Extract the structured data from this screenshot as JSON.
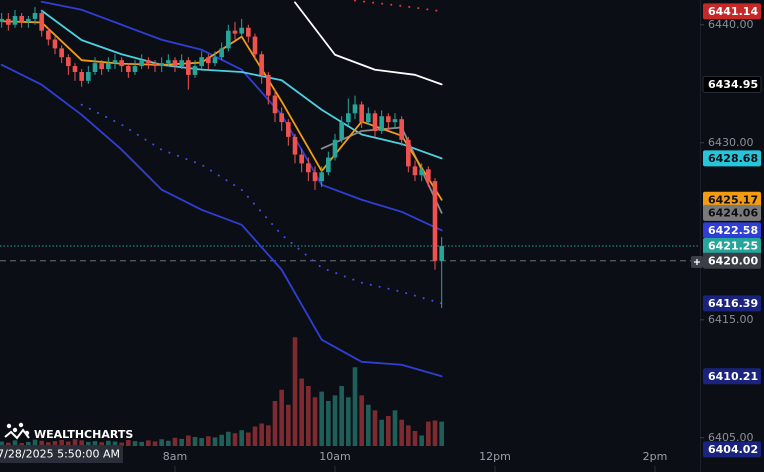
{
  "chart_data": {
    "type": "candlestick",
    "x": [
      350,
      355,
      360,
      365,
      370,
      375,
      380,
      385,
      390,
      395,
      400,
      405,
      410,
      415,
      420,
      425,
      430,
      435,
      440,
      445,
      450,
      455,
      460,
      465,
      470,
      475,
      480,
      485,
      490,
      495,
      500,
      505,
      510,
      515,
      520,
      525,
      530,
      535,
      540,
      545,
      550,
      555,
      560,
      565,
      570,
      575,
      580,
      585,
      590,
      595,
      600,
      605,
      610,
      615,
      620,
      625,
      630,
      635,
      640,
      645,
      650,
      655,
      660,
      665,
      670,
      675,
      680
    ],
    "open": [
      6440.25,
      6440.5,
      6440.0,
      6440.75,
      6440.25,
      6440.5,
      6441.0,
      6439.5,
      6438.75,
      6438.0,
      6437.25,
      6436.5,
      6436.0,
      6435.25,
      6436.0,
      6436.75,
      6436.25,
      6436.75,
      6437.0,
      6436.5,
      6436.0,
      6436.5,
      6437.0,
      6436.75,
      6436.5,
      6436.75,
      6437.0,
      6436.5,
      6437.0,
      6435.75,
      6436.5,
      6437.25,
      6436.75,
      6437.25,
      6438.0,
      6439.5,
      6439.25,
      6439.75,
      6439.0,
      6437.5,
      6435.75,
      6434.0,
      6432.5,
      6431.75,
      6430.5,
      6429.0,
      6428.25,
      6427.5,
      6426.75,
      6427.5,
      6428.75,
      6430.25,
      6431.75,
      6432.5,
      6433.25,
      6431.75,
      6432.5,
      6431.0,
      6432.25,
      6431.75,
      6432.0,
      6430.25,
      6428.0,
      6427.25,
      6427.75,
      6426.75,
      6420.0
    ],
    "high": [
      6441.0,
      6441.0,
      6441.25,
      6441.0,
      6440.75,
      6441.5,
      6441.25,
      6439.75,
      6439.0,
      6438.25,
      6437.5,
      6436.75,
      6436.25,
      6436.5,
      6437.25,
      6437.0,
      6437.25,
      6437.5,
      6437.25,
      6436.75,
      6437.0,
      6437.5,
      6437.25,
      6437.0,
      6437.25,
      6437.5,
      6437.25,
      6437.5,
      6437.25,
      6437.0,
      6437.75,
      6437.5,
      6437.75,
      6438.5,
      6440.0,
      6440.25,
      6440.5,
      6440.0,
      6439.25,
      6437.75,
      6436.0,
      6434.5,
      6433.0,
      6432.0,
      6430.75,
      6429.5,
      6428.75,
      6428.0,
      6428.0,
      6429.25,
      6430.75,
      6432.25,
      6433.75,
      6434.0,
      6433.5,
      6433.0,
      6432.75,
      6432.75,
      6432.5,
      6432.5,
      6432.25,
      6430.5,
      6428.5,
      6428.25,
      6428.0,
      6427.0,
      6422.0
    ],
    "low": [
      6439.75,
      6439.5,
      6439.75,
      6439.75,
      6439.75,
      6440.0,
      6439.0,
      6438.25,
      6437.5,
      6436.75,
      6435.75,
      6435.25,
      6434.75,
      6435.0,
      6435.75,
      6435.75,
      6436.0,
      6436.25,
      6436.0,
      6435.5,
      6435.75,
      6436.25,
      6436.25,
      6436.0,
      6436.0,
      6436.5,
      6436.0,
      6436.25,
      6434.5,
      6435.5,
      6436.25,
      6436.25,
      6436.5,
      6437.0,
      6437.75,
      6438.75,
      6439.0,
      6438.5,
      6437.0,
      6435.0,
      6433.25,
      6431.75,
      6431.0,
      6429.75,
      6428.25,
      6427.5,
      6426.75,
      6426.0,
      6426.25,
      6427.25,
      6428.5,
      6430.0,
      6431.5,
      6432.0,
      6431.25,
      6431.5,
      6430.5,
      6430.75,
      6431.0,
      6431.25,
      6429.75,
      6427.5,
      6426.75,
      6426.75,
      6426.25,
      6419.25,
      6416.0
    ],
    "close": [
      6440.5,
      6440.0,
      6440.75,
      6440.25,
      6440.5,
      6441.0,
      6439.5,
      6438.75,
      6438.0,
      6437.25,
      6436.5,
      6436.0,
      6435.25,
      6436.0,
      6436.75,
      6436.25,
      6436.75,
      6437.0,
      6436.5,
      6436.0,
      6436.5,
      6437.0,
      6436.75,
      6436.5,
      6436.75,
      6437.0,
      6436.5,
      6437.0,
      6435.75,
      6436.5,
      6437.25,
      6436.75,
      6437.25,
      6438.0,
      6439.5,
      6439.25,
      6439.75,
      6439.0,
      6437.5,
      6435.75,
      6434.0,
      6432.5,
      6431.75,
      6430.5,
      6429.0,
      6428.25,
      6427.5,
      6426.75,
      6427.5,
      6428.75,
      6430.25,
      6431.75,
      6432.5,
      6433.25,
      6431.75,
      6432.5,
      6431.0,
      6432.25,
      6431.75,
      6432.0,
      6430.25,
      6428.0,
      6427.25,
      6427.75,
      6426.75,
      6420.0,
      6421.25
    ],
    "volume": [
      1200,
      900,
      1500,
      800,
      1100,
      1700,
      1400,
      1000,
      1300,
      1600,
      1200,
      1800,
      1500,
      1100,
      1300,
      1000,
      1400,
      1200,
      900,
      1600,
      1300,
      1100,
      1500,
      1200,
      1800,
      1400,
      2200,
      1900,
      2800,
      2400,
      2100,
      2600,
      2300,
      3000,
      3800,
      3400,
      4200,
      3600,
      5200,
      6000,
      5500,
      12000,
      15000,
      11000,
      29000,
      18000,
      16000,
      13000,
      14500,
      12000,
      13500,
      16000,
      13000,
      21000,
      13500,
      11000,
      9500,
      7000,
      8000,
      9500,
      7000,
      5500,
      4000,
      2800,
      6500,
      6800,
      6500
    ],
    "up_color": "#26a69a",
    "down_color": "#ef5350",
    "volume_up_color": "#1f5f5a",
    "volume_down_color": "#7d2b30",
    "volume_lim": [
      0,
      40000
    ],
    "xlim": [
      348.75,
      873.75
    ],
    "xticks": [
      {
        "value": 480,
        "label": "8am"
      },
      {
        "value": 600,
        "label": "10am"
      },
      {
        "value": 720,
        "label": "12pm"
      },
      {
        "value": 840,
        "label": "2pm"
      }
    ],
    "ylim": [
      6402.1,
      6442.1
    ],
    "yticks": [
      {
        "value": 6440,
        "label": "6440.00"
      },
      {
        "value": 6430,
        "label": "6430.00"
      },
      {
        "value": 6415,
        "label": "6415.00"
      },
      {
        "value": 6405,
        "label": "6405.00"
      }
    ],
    "overlays": [
      {
        "x": [
          350,
          380,
          410,
          440,
          470,
          500,
          530,
          560,
          590,
          620,
          650,
          680
        ],
        "values": [
          6436.61,
          6434.92,
          6432.37,
          6429.41,
          6426.02,
          6424.32,
          6423.05,
          6419.24,
          6413.31,
          6411.44,
          6411.19,
          6410.21
        ],
        "color": "#2f3fd6",
        "style": "solid"
      },
      {
        "x": [
          350,
          380,
          410,
          440,
          470,
          500,
          530,
          560,
          590,
          620,
          650,
          680
        ],
        "values": [
          null,
          6441.95,
          6441.27,
          6440.0,
          6438.73,
          6437.88,
          6436.19,
          6432.37,
          6426.44,
          6425.17,
          6424.15,
          6422.58
        ],
        "color": "#2f3fd6",
        "style": "solid"
      },
      {
        "x": [
          350,
          380,
          410,
          440,
          470,
          500,
          530,
          560,
          590,
          620,
          650,
          680
        ],
        "values": [
          null,
          null,
          6433.22,
          6431.53,
          6429.41,
          6428.14,
          6426.02,
          6422.2,
          6419.41,
          6418.14,
          6417.37,
          6416.39
        ],
        "color": "#3d4fe0",
        "style": "dotted"
      },
      {
        "x": [
          350,
          380,
          410,
          440,
          470,
          500,
          530,
          560,
          590,
          620,
          650,
          680
        ],
        "values": [
          null,
          6441.2,
          6438.7,
          6437.5,
          6436.6,
          6436.2,
          6436.0,
          6435.3,
          6432.8,
          6430.7,
          6429.9,
          6428.68
        ],
        "color": "#4dd0e1",
        "style": "solid"
      },
      {
        "x": [
          590,
          620,
          650,
          680
        ],
        "values": [
          6429.5,
          6431.0,
          6431.3,
          6424.06
        ],
        "color": "#8a8a8a",
        "style": "solid"
      },
      {
        "x": [
          350,
          380,
          410,
          440,
          470,
          500,
          530,
          560,
          590,
          620,
          650,
          680
        ],
        "values": [
          6440.3,
          6440.2,
          6437.0,
          6436.7,
          6436.6,
          6436.8,
          6439.0,
          6433.5,
          6427.6,
          6431.8,
          6430.6,
          6425.17
        ],
        "color": "#f39c12",
        "style": "solid"
      },
      {
        "x": [
          570,
          600,
          630,
          660,
          680
        ],
        "values": [
          6441.9,
          6437.46,
          6436.19,
          6435.76,
          6434.95
        ],
        "color": "#ffffff",
        "style": "solid"
      },
      {
        "x": [
          615,
          650,
          680
        ],
        "values": [
          6442.05,
          6441.6,
          6441.14
        ],
        "color": "#e53935",
        "style": "dotted"
      }
    ],
    "price_tags": [
      {
        "value": 6441.14,
        "label": "6441.14",
        "color": "#c62828",
        "text_color": "#ffffff"
      },
      {
        "value": 6434.95,
        "label": "6434.95",
        "color": "#000000",
        "text_color": "#ffffff"
      },
      {
        "value": 6428.68,
        "label": "6428.68",
        "color": "#26c6da",
        "text_color": "#0b0e14"
      },
      {
        "value": 6425.17,
        "label": "6425.17",
        "color": "#f39c12",
        "text_color": "#0b0e14"
      },
      {
        "value": 6424.06,
        "label": "6424.06",
        "color": "#7a7a7a",
        "text_color": "#0b0e14"
      },
      {
        "value": 6422.58,
        "label": "6422.58",
        "color": "#2f3fd6",
        "text_color": "#ffffff"
      },
      {
        "value": 6421.25,
        "label": "6421.25",
        "color": "#26a69a",
        "text_color": "#ffffff",
        "line": "dotted"
      },
      {
        "value": 6420.0,
        "label": "6420.00",
        "color": "#3a3f47",
        "text_color": "#ffffff",
        "line": "dashed"
      },
      {
        "value": 6416.39,
        "label": "6416.39",
        "color": "#1a237e",
        "text_color": "#ffffff"
      },
      {
        "value": 6410.21,
        "label": "6410.21",
        "color": "#1a237e",
        "text_color": "#ffffff"
      },
      {
        "value": 6404.02,
        "label": "6404.02",
        "color": "#1a237e",
        "text_color": "#ffffff"
      }
    ],
    "crosshair_time": "7/28/2025 5:50:00 AM",
    "logo": "WEALTHCHARTS"
  }
}
